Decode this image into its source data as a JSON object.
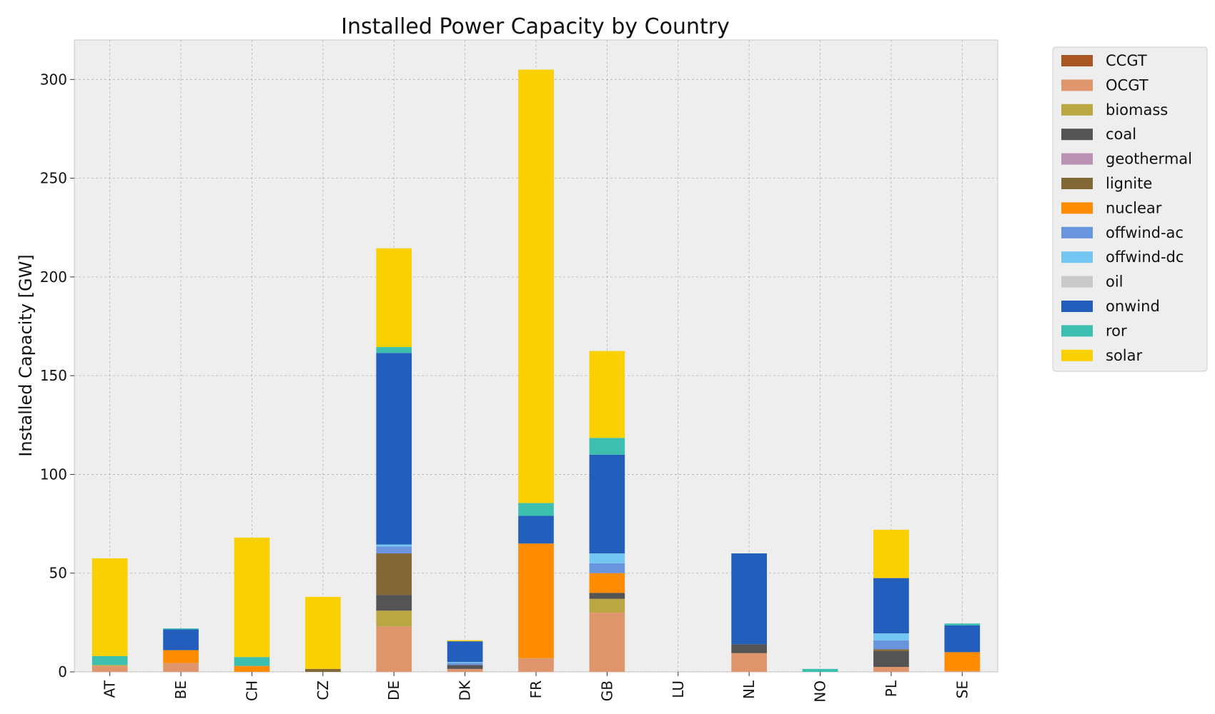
{
  "chart_data": {
    "type": "bar",
    "stacked": true,
    "title": "Installed Power Capacity by Country",
    "xlabel": "",
    "ylabel": "Installed Capacity [GW]",
    "ylim": [
      0,
      320
    ],
    "yticks": [
      0,
      50,
      100,
      150,
      200,
      250,
      300
    ],
    "grid": true,
    "legend_position": "outside-top-right",
    "categories": [
      "AT",
      "BE",
      "CH",
      "CZ",
      "DE",
      "DK",
      "FR",
      "GB",
      "LU",
      "NL",
      "NO",
      "PL",
      "SE"
    ],
    "series": [
      {
        "name": "CCGT",
        "color": "#a85623",
        "values": [
          0,
          0,
          0,
          0,
          0,
          0,
          0,
          0,
          0,
          0,
          0,
          0,
          0
        ]
      },
      {
        "name": "OCGT",
        "color": "#e0966c",
        "values": [
          3,
          4.5,
          0,
          0,
          23,
          1.5,
          7,
          30,
          0,
          9.5,
          0,
          2.5,
          0.5
        ]
      },
      {
        "name": "biomass",
        "color": "#baa741",
        "values": [
          0.5,
          0,
          0,
          0,
          8,
          0,
          0,
          7,
          0,
          0,
          0,
          0,
          0
        ]
      },
      {
        "name": "coal",
        "color": "#545454",
        "values": [
          0,
          0,
          0,
          0,
          8,
          2,
          0,
          3,
          0,
          4.5,
          0,
          8,
          0
        ]
      },
      {
        "name": "geothermal",
        "color": "#ba91b1",
        "values": [
          0,
          0,
          0,
          0,
          0,
          0,
          0,
          0,
          0,
          0,
          0,
          0,
          0
        ]
      },
      {
        "name": "lignite",
        "color": "#826837",
        "values": [
          0,
          0,
          0,
          1.5,
          21,
          0,
          0,
          0,
          0,
          0,
          0,
          1,
          0
        ]
      },
      {
        "name": "nuclear",
        "color": "#ff8c00",
        "values": [
          0,
          6.5,
          3,
          0,
          0,
          0,
          58,
          10,
          0,
          0,
          0,
          0,
          9.5
        ]
      },
      {
        "name": "offwind-ac",
        "color": "#6895dd",
        "values": [
          0,
          0,
          0,
          0,
          3.5,
          1,
          0,
          5,
          0,
          0,
          0,
          4.5,
          0
        ]
      },
      {
        "name": "offwind-dc",
        "color": "#74c6f2",
        "values": [
          0,
          0,
          0,
          0,
          1,
          0.5,
          0,
          5,
          0,
          0,
          0,
          3.5,
          0
        ]
      },
      {
        "name": "oil",
        "color": "#c9c9c9",
        "values": [
          0,
          0,
          0,
          0,
          0,
          0,
          0,
          0,
          0,
          0,
          0,
          0,
          0
        ]
      },
      {
        "name": "onwind",
        "color": "#235ebc",
        "values": [
          0,
          10.5,
          0,
          0,
          97,
          10.5,
          14,
          50,
          0,
          46,
          0,
          28,
          13.5
        ]
      },
      {
        "name": "ror",
        "color": "#3dbfb0",
        "values": [
          4.5,
          0.5,
          4.5,
          0,
          3,
          0,
          6.5,
          8.5,
          0,
          0,
          1.5,
          0,
          1
        ]
      },
      {
        "name": "solar",
        "color": "#f9d002",
        "values": [
          49.5,
          0,
          60.5,
          36.5,
          50,
          0.5,
          219.5,
          44,
          0,
          0,
          0,
          24.5,
          0
        ]
      }
    ]
  }
}
